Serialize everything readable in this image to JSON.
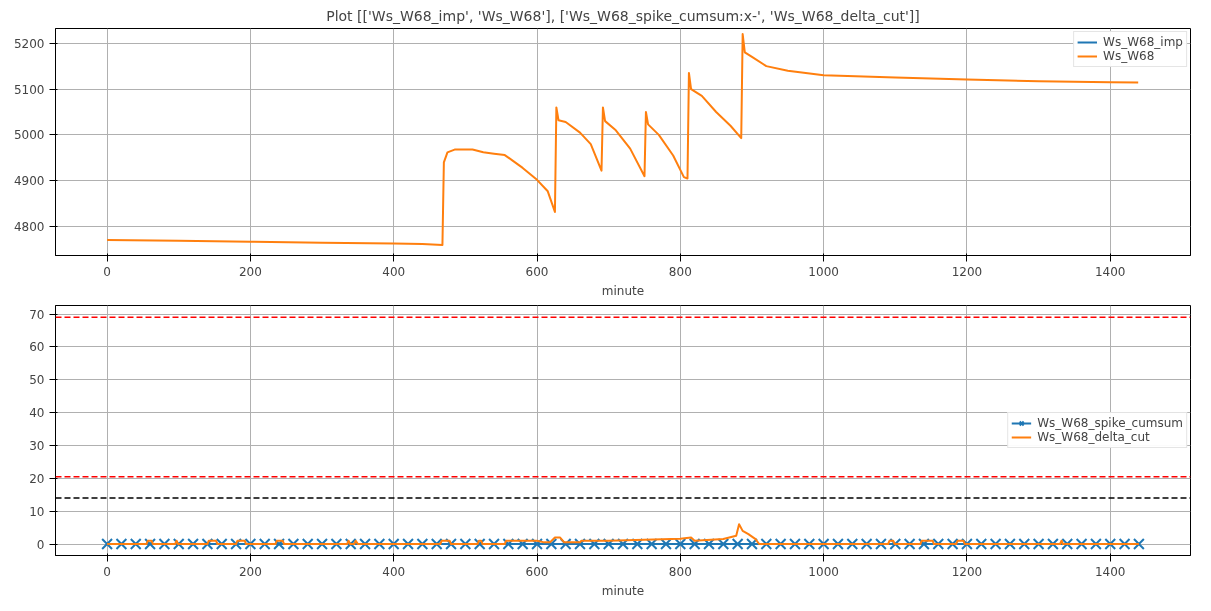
{
  "chart_data": [
    {
      "type": "line",
      "title": "Plot [['Ws_W68_imp', 'Ws_W68'], ['Ws_W68_spike_cumsum:x-', 'Ws_W68_delta_cut']]",
      "xlabel": "minute",
      "xlim": [
        -72,
        1512
      ],
      "xticks": [
        0,
        200,
        400,
        600,
        800,
        1000,
        1200,
        1400
      ],
      "ylim": [
        4737,
        5232
      ],
      "yticks": [
        4800,
        4900,
        5000,
        5100,
        5200
      ],
      "grid": true,
      "legend": "top right",
      "line_style": "solid",
      "series": [
        {
          "name": "Ws_W68_imp",
          "color": "#1f77b4"
        },
        {
          "name": "Ws_W68",
          "color": "#ff7f0e",
          "x": [
            0,
            100,
            200,
            300,
            400,
            440,
            468,
            470,
            475,
            485,
            510,
            525,
            540,
            555,
            565,
            580,
            600,
            615,
            625,
            627,
            630,
            640,
            660,
            675,
            690,
            692,
            695,
            710,
            730,
            750,
            752,
            755,
            770,
            790,
            805,
            810,
            812,
            815,
            830,
            850,
            870,
            885,
            887,
            890,
            900,
            920,
            950,
            1000,
            1100,
            1200,
            1300,
            1400,
            1439
          ],
          "values": [
            4771,
            4769,
            4767,
            4765,
            4763,
            4762,
            4760,
            4940,
            4962,
            4968,
            4968,
            4962,
            4959,
            4956,
            4945,
            4928,
            4902,
            4877,
            4832,
            5060,
            5032,
            5028,
            5005,
            4980,
            4922,
            5060,
            5030,
            5010,
            4970,
            4910,
            5050,
            5023,
            5000,
            4955,
            4908,
            4905,
            5135,
            5100,
            5085,
            5050,
            5020,
            4993,
            5220,
            5180,
            5170,
            5150,
            5140,
            5130,
            5125,
            5121,
            5117,
            5115,
            5114
          ]
        }
      ]
    },
    {
      "type": "line",
      "xlabel": "minute",
      "xlim": [
        -72,
        1512
      ],
      "xticks": [
        0,
        200,
        400,
        600,
        800,
        1000,
        1200,
        1400
      ],
      "ylim": [
        -3.5,
        72.6
      ],
      "yticks": [
        0,
        10,
        20,
        30,
        40,
        50,
        60,
        70
      ],
      "grid": true,
      "legend": "right",
      "line_style": "solid",
      "ref_lines": [
        {
          "axis": "y",
          "value": 69,
          "color": "#ff0000",
          "line_style": "dashed"
        },
        {
          "axis": "y",
          "value": 20.5,
          "color": "#ff0000",
          "line_style": "dashed"
        },
        {
          "axis": "y",
          "value": 14,
          "color": "#000000",
          "line_style": "dashed"
        }
      ],
      "series": [
        {
          "name": "Ws_W68_spike_cumsum",
          "color": "#1f77b4",
          "marker": "cross",
          "x": [
            0,
            20,
            40,
            60,
            80,
            100,
            120,
            140,
            160,
            180,
            200,
            220,
            240,
            260,
            280,
            300,
            320,
            340,
            360,
            380,
            400,
            420,
            440,
            460,
            480,
            500,
            520,
            540,
            560,
            580,
            600,
            620,
            640,
            660,
            680,
            700,
            720,
            740,
            760,
            780,
            800,
            820,
            840,
            860,
            880,
            900,
            920,
            940,
            960,
            980,
            1000,
            1020,
            1040,
            1060,
            1080,
            1100,
            1120,
            1140,
            1160,
            1180,
            1200,
            1220,
            1240,
            1260,
            1280,
            1300,
            1320,
            1340,
            1360,
            1380,
            1400,
            1420,
            1440
          ],
          "values": [
            0,
            0,
            0,
            0,
            0,
            0,
            0,
            0,
            0,
            0,
            0,
            0,
            0,
            0,
            0,
            0,
            0,
            0,
            0,
            0,
            0,
            0,
            0,
            0,
            0,
            0,
            0,
            0,
            0,
            0,
            0,
            0,
            0,
            0,
            0,
            0,
            0,
            0,
            0,
            0,
            0,
            0,
            0,
            0,
            0,
            0,
            0,
            0,
            0,
            0,
            0,
            0,
            0,
            0,
            0,
            0,
            0,
            0,
            0,
            0,
            0,
            0,
            0,
            0,
            0,
            0,
            0,
            0,
            0,
            0,
            0,
            0,
            0
          ]
        },
        {
          "name": "Ws_W68_delta_cut",
          "color": "#ff7f0e",
          "x": [
            0,
            55,
            57,
            62,
            64,
            95,
            97,
            99,
            140,
            142,
            152,
            154,
            180,
            182,
            192,
            194,
            235,
            237,
            245,
            247,
            335,
            337,
            339,
            345,
            347,
            350,
            465,
            467,
            478,
            480,
            517,
            519,
            522,
            524,
            555,
            557,
            600,
            610,
            618,
            625,
            632,
            638,
            660,
            662,
            700,
            750,
            800,
            815,
            820,
            860,
            878,
            882,
            887,
            895,
            905,
            910,
            1090,
            1092,
            1097,
            1099,
            1135,
            1137,
            1152,
            1154,
            1185,
            1187,
            1195,
            1197,
            1330,
            1332,
            1334,
            1440
          ],
          "values": [
            0,
            0,
            1,
            1,
            0,
            0,
            1,
            0,
            0,
            1,
            1,
            0,
            0,
            1,
            1,
            0,
            0,
            1,
            1,
            0,
            0,
            1,
            0,
            0,
            1,
            0,
            0,
            1,
            1,
            0,
            0,
            1,
            1,
            0,
            0,
            1,
            1,
            0.5,
            0.5,
            2,
            2,
            0.5,
            0.5,
            1,
            1,
            1.3,
            1.6,
            2,
            1,
            1.5,
            2.5,
            6,
            4,
            3,
            1.5,
            0,
            0,
            1,
            1,
            0,
            0,
            1,
            1,
            0,
            0,
            1,
            1,
            0,
            0,
            1,
            0,
            0
          ]
        }
      ]
    }
  ]
}
